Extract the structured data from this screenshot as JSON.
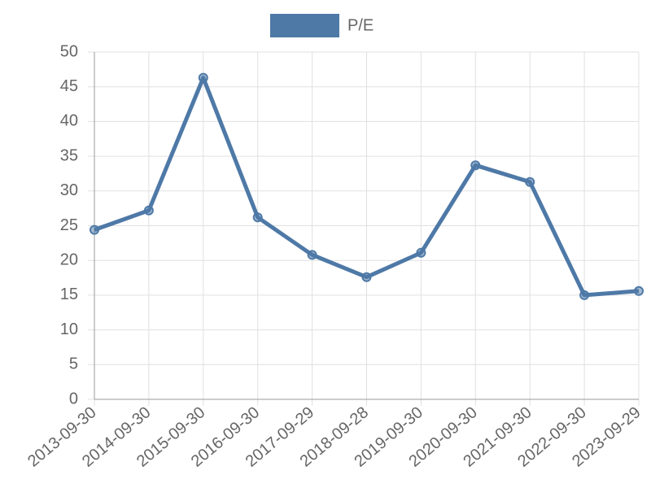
{
  "chart_data": {
    "type": "line",
    "categories": [
      "2013-09-30",
      "2014-09-30",
      "2015-09-30",
      "2016-09-30",
      "2017-09-29",
      "2018-09-28",
      "2019-09-30",
      "2020-09-30",
      "2021-09-30",
      "2022-09-30",
      "2023-09-29"
    ],
    "series": [
      {
        "name": "P/E",
        "color": "#4e79a7",
        "values": [
          24.4,
          27.2,
          46.3,
          26.2,
          20.8,
          17.6,
          21.1,
          33.7,
          31.3,
          15.0,
          15.6
        ]
      }
    ],
    "ylim": [
      0,
      50
    ],
    "yticks": [
      0,
      5,
      10,
      15,
      20,
      25,
      30,
      35,
      40,
      45,
      50
    ],
    "grid": true,
    "legend": "top"
  }
}
